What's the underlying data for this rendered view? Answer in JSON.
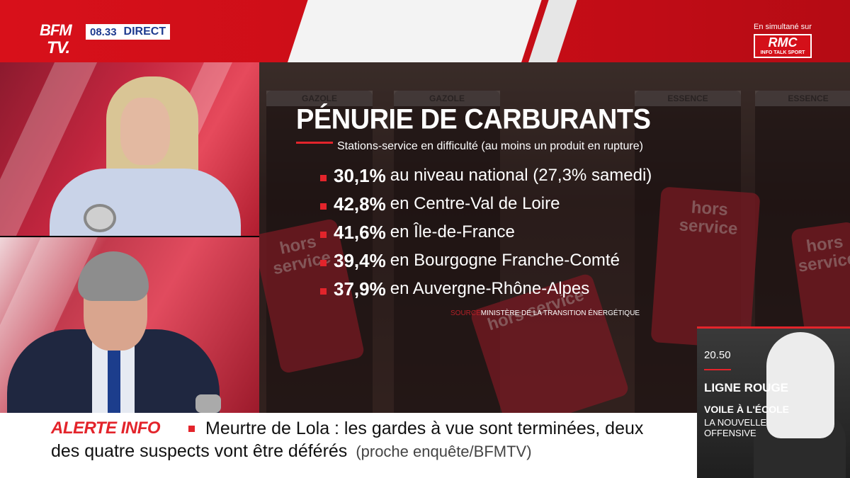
{
  "channel": {
    "logo_line1": "BFM",
    "logo_line2": "TV.",
    "time": "08.33",
    "live_label": "DIRECT"
  },
  "simulcast": {
    "label": "En simultané sur",
    "brand": "RMC",
    "brand_sub": "INFO TALK SPORT"
  },
  "graphic": {
    "title": "PÉNURIE DE CARBURANTS",
    "subtitle": "Stations-service en difficulté (au moins un produit en rupture)",
    "stats": [
      {
        "value": "30,1%",
        "text": "au niveau national (27,3% samedi)"
      },
      {
        "value": "42,8%",
        "text": "en Centre-Val de Loire"
      },
      {
        "value": "41,6%",
        "text": "en Île-de-France"
      },
      {
        "value": "39,4%",
        "text": "en Bourgogne Franche-Comté"
      },
      {
        "value": "37,9%",
        "text": "en Auvergne-Rhône-Alpes"
      }
    ],
    "source_label": "SOURCE",
    "source_text": "MINISTÈRE DE LA TRANSITION ÉNERGÉTIQUE",
    "background_labels": {
      "pump1": "GAZOLE",
      "pump2": "GAZOLE",
      "pump3": "ESSENCE",
      "pump4": "ESSENCE",
      "sign": "hors service"
    }
  },
  "ticker": {
    "alert_label": "ALERTE INFO",
    "line1": "Meurtre de Lola : les gardes à vue sont terminées, deux",
    "line2": "des quatre suspects vont être déférés",
    "source": "(proche enquête/BFMTV)"
  },
  "promo": {
    "time": "20.50",
    "show": "LIGNE ROUGE",
    "title": "VOILE À L'ÉCOLE",
    "subtitle": "LA NOUVELLE OFFENSIVE"
  },
  "colors": {
    "brand_red": "#d8101a",
    "accent_red": "#e3242b",
    "bfm_blue": "#1d3a8f"
  }
}
